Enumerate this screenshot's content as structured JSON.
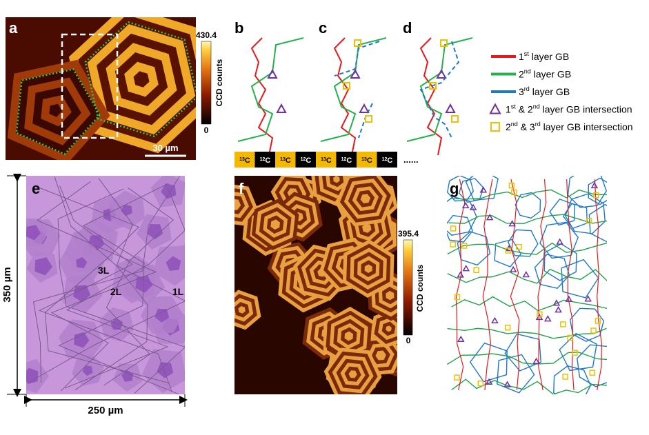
{
  "panel_labels": [
    "a",
    "b",
    "c",
    "d",
    "e",
    "f",
    "g"
  ],
  "panel_a": {
    "colorbar_max": "430.4",
    "colorbar_min": "0",
    "colorbar_title": "CCD counts",
    "scale_bar": "30 µm"
  },
  "legend": [
    {
      "parts": [
        {
          "text": "1"
        },
        {
          "sup": "st"
        },
        {
          "text": " layer GB"
        }
      ]
    },
    {
      "parts": [
        {
          "text": "2"
        },
        {
          "sup": "nd"
        },
        {
          "text": " layer GB"
        }
      ]
    },
    {
      "parts": [
        {
          "text": "3"
        },
        {
          "sup": "rd"
        },
        {
          "text": " layer GB"
        }
      ]
    },
    {
      "parts": [
        {
          "text": "1"
        },
        {
          "sup": "st"
        },
        {
          "text": " & 2"
        },
        {
          "sup": "nd"
        },
        {
          "text": " layer GB intersection"
        }
      ]
    },
    {
      "parts": [
        {
          "text": "2"
        },
        {
          "sup": "nd"
        },
        {
          "text": " & 3"
        },
        {
          "sup": "rd"
        },
        {
          "text": " layer GB intersection"
        }
      ]
    }
  ],
  "strip": [
    {
      "sup": "13",
      "el": "C"
    },
    {
      "sup": "12",
      "el": "C"
    },
    {
      "sup": "13",
      "el": "C"
    },
    {
      "sup": "12",
      "el": "C"
    },
    {
      "sup": "13",
      "el": "C"
    },
    {
      "sup": "12",
      "el": "C"
    },
    {
      "sup": "13",
      "el": "C"
    },
    {
      "sup": "12",
      "el": "C"
    }
  ],
  "strip_more": "......",
  "panel_e": {
    "labels": [
      "3L",
      "2L",
      "1L"
    ],
    "height": "350 µm",
    "width": "250 µm"
  },
  "panel_f": {
    "colorbar_max": "395.4",
    "colorbar_min": "0",
    "colorbar_title": "CCD counts"
  }
}
